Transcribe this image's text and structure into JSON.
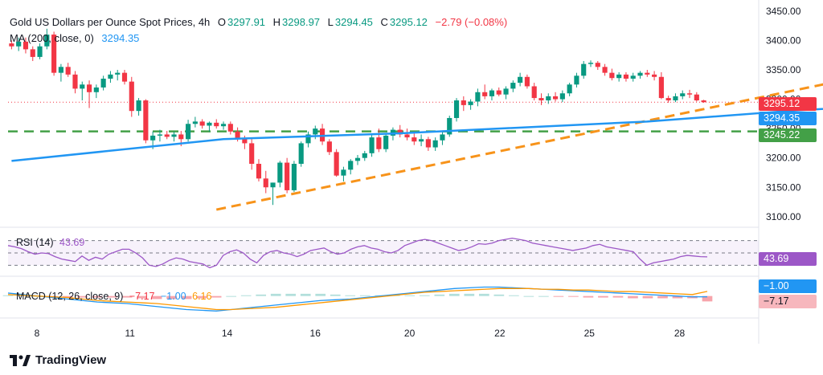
{
  "header": {
    "title": "Gold US Dollars per Ounce Spot Prices, 4h",
    "open_label": "O",
    "open": "3297.91",
    "high_label": "H",
    "high": "3298.97",
    "low_label": "L",
    "low": "3294.45",
    "close_label": "C",
    "close": "3295.12",
    "change": "−2.79 (−0.08%)",
    "ma_label": "MA (200, close, 0)",
    "ma_value": "3294.35"
  },
  "rsi": {
    "label": "RSI (14)",
    "value": "43.69"
  },
  "macd": {
    "label": "MACD (12, 26, close, 9)",
    "hist_value": "−7.17",
    "macd_value": "−1.00",
    "signal_value": "6.16"
  },
  "price_tags": {
    "last": "3295.12",
    "ma": "3294.35",
    "support": "3245.22",
    "rsi": "43.69",
    "macd": "−1.00",
    "hist": "−7.17"
  },
  "footer": {
    "brand": "TradingView"
  },
  "colors": {
    "up": "#089981",
    "down": "#f23645",
    "ma": "#2196f3",
    "trend": "#f7931a",
    "support": "#43a047",
    "rsi": "#9c57c7",
    "macd_line": "#2196f3",
    "signal_line": "#ff9800"
  },
  "chart_data": {
    "type": "candlestick",
    "title": "Gold US Dollars per Ounce Spot Prices, 4h",
    "y_ticks": [
      3100,
      3150,
      3200,
      3250,
      3300,
      3350,
      3400,
      3450
    ],
    "y_tick_labels": [
      "3100.00",
      "3150.00",
      "3200.00",
      "3250.00",
      "3300.00",
      "3350.00",
      "3400.00",
      "3450.00"
    ],
    "x_tick_labels": [
      "8",
      "11",
      "14",
      "16",
      "20",
      "22",
      "25",
      "28"
    ],
    "ylim": [
      3082,
      3458
    ],
    "candles_ohlc": [
      [
        3395,
        3400,
        3385,
        3390
      ],
      [
        3390,
        3405,
        3382,
        3398
      ],
      [
        3398,
        3405,
        3378,
        3385
      ],
      [
        3385,
        3390,
        3365,
        3372
      ],
      [
        3372,
        3395,
        3368,
        3390
      ],
      [
        3390,
        3420,
        3385,
        3410
      ],
      [
        3410,
        3415,
        3340,
        3345
      ],
      [
        3345,
        3360,
        3330,
        3355
      ],
      [
        3355,
        3362,
        3338,
        3342
      ],
      [
        3342,
        3348,
        3310,
        3318
      ],
      [
        3318,
        3330,
        3298,
        3325
      ],
      [
        3325,
        3332,
        3285,
        3312
      ],
      [
        3312,
        3325,
        3302,
        3320
      ],
      [
        3320,
        3340,
        3315,
        3335
      ],
      [
        3335,
        3348,
        3328,
        3342
      ],
      [
        3342,
        3350,
        3332,
        3345
      ],
      [
        3345,
        3350,
        3325,
        3330
      ],
      [
        3330,
        3338,
        3270,
        3280
      ],
      [
        3280,
        3302,
        3272,
        3298
      ],
      [
        3298,
        3300,
        3225,
        3230
      ],
      [
        3230,
        3245,
        3215,
        3238
      ],
      [
        3238,
        3248,
        3228,
        3240
      ],
      [
        3240,
        3246,
        3232,
        3236
      ],
      [
        3236,
        3245,
        3228,
        3240
      ],
      [
        3240,
        3246,
        3220,
        3232
      ],
      [
        3232,
        3265,
        3228,
        3258
      ],
      [
        3258,
        3270,
        3252,
        3262
      ],
      [
        3262,
        3266,
        3250,
        3255
      ],
      [
        3255,
        3262,
        3245,
        3260
      ],
      [
        3260,
        3266,
        3250,
        3254
      ],
      [
        3254,
        3262,
        3248,
        3258
      ],
      [
        3258,
        3262,
        3240,
        3245
      ],
      [
        3245,
        3252,
        3228,
        3232
      ],
      [
        3232,
        3238,
        3215,
        3225
      ],
      [
        3225,
        3232,
        3180,
        3190
      ],
      [
        3190,
        3198,
        3160,
        3165
      ],
      [
        3165,
        3178,
        3140,
        3150
      ],
      [
        3150,
        3158,
        3120,
        3158
      ],
      [
        3158,
        3195,
        3150,
        3192
      ],
      [
        3192,
        3200,
        3140,
        3145
      ],
      [
        3145,
        3195,
        3142,
        3190
      ],
      [
        3190,
        3228,
        3185,
        3225
      ],
      [
        3225,
        3245,
        3218,
        3240
      ],
      [
        3240,
        3255,
        3232,
        3250
      ],
      [
        3250,
        3258,
        3222,
        3228
      ],
      [
        3228,
        3232,
        3205,
        3210
      ],
      [
        3210,
        3215,
        3168,
        3170
      ],
      [
        3170,
        3185,
        3160,
        3180
      ],
      [
        3180,
        3198,
        3172,
        3195
      ],
      [
        3195,
        3205,
        3188,
        3200
      ],
      [
        3200,
        3212,
        3195,
        3208
      ],
      [
        3208,
        3240,
        3202,
        3235
      ],
      [
        3235,
        3250,
        3210,
        3215
      ],
      [
        3215,
        3240,
        3210,
        3238
      ],
      [
        3238,
        3252,
        3230,
        3248
      ],
      [
        3248,
        3256,
        3235,
        3240
      ],
      [
        3240,
        3250,
        3230,
        3235
      ],
      [
        3235,
        3245,
        3222,
        3228
      ],
      [
        3228,
        3240,
        3220,
        3232
      ],
      [
        3232,
        3236,
        3212,
        3218
      ],
      [
        3218,
        3235,
        3212,
        3230
      ],
      [
        3230,
        3245,
        3222,
        3240
      ],
      [
        3240,
        3272,
        3236,
        3268
      ],
      [
        3268,
        3302,
        3262,
        3298
      ],
      [
        3298,
        3305,
        3280,
        3290
      ],
      [
        3290,
        3300,
        3282,
        3296
      ],
      [
        3296,
        3318,
        3288,
        3312
      ],
      [
        3312,
        3325,
        3300,
        3305
      ],
      [
        3305,
        3318,
        3298,
        3315
      ],
      [
        3315,
        3320,
        3305,
        3308
      ],
      [
        3308,
        3322,
        3300,
        3318
      ],
      [
        3318,
        3332,
        3312,
        3328
      ],
      [
        3328,
        3345,
        3322,
        3338
      ],
      [
        3338,
        3342,
        3318,
        3322
      ],
      [
        3322,
        3328,
        3298,
        3302
      ],
      [
        3302,
        3310,
        3290,
        3298
      ],
      [
        3298,
        3310,
        3292,
        3305
      ],
      [
        3305,
        3312,
        3296,
        3300
      ],
      [
        3300,
        3315,
        3295,
        3310
      ],
      [
        3310,
        3328,
        3305,
        3325
      ],
      [
        3325,
        3345,
        3320,
        3340
      ],
      [
        3340,
        3365,
        3335,
        3360
      ],
      [
        3360,
        3366,
        3355,
        3362
      ],
      [
        3362,
        3365,
        3350,
        3355
      ],
      [
        3355,
        3360,
        3340,
        3345
      ],
      [
        3345,
        3352,
        3332,
        3336
      ],
      [
        3336,
        3346,
        3330,
        3342
      ],
      [
        3342,
        3346,
        3330,
        3335
      ],
      [
        3335,
        3345,
        3330,
        3340
      ],
      [
        3340,
        3348,
        3335,
        3345
      ],
      [
        3345,
        3350,
        3338,
        3342
      ],
      [
        3342,
        3348,
        3332,
        3338
      ],
      [
        3338,
        3346,
        3300,
        3302
      ],
      [
        3302,
        3306,
        3294,
        3298
      ],
      [
        3298,
        3310,
        3295,
        3305
      ],
      [
        3305,
        3315,
        3300,
        3310
      ],
      [
        3310,
        3316,
        3302,
        3308
      ],
      [
        3308,
        3312,
        3296,
        3298
      ],
      [
        3298,
        3299,
        3294,
        3295
      ]
    ],
    "ma_200": [
      [
        0,
        3195
      ],
      [
        30,
        3232
      ],
      [
        55,
        3242
      ],
      [
        90,
        3262
      ],
      [
        110,
        3280
      ],
      [
        124,
        3290
      ],
      [
        135,
        3294.35
      ]
    ],
    "trend_line": [
      [
        29,
        3112
      ],
      [
        135,
        3375
      ]
    ],
    "support_level": 3245.22,
    "rsi_values": [
      62,
      60,
      57,
      52,
      48,
      50,
      49,
      44,
      40,
      38,
      36,
      45,
      38,
      43,
      40,
      48,
      52,
      56,
      56,
      50,
      42,
      30,
      28,
      32,
      38,
      42,
      40,
      36,
      34,
      32,
      26,
      30,
      46,
      52,
      55,
      50,
      40,
      34,
      46,
      52,
      54,
      50,
      48,
      44,
      48,
      54,
      56,
      58,
      52,
      48,
      50,
      56,
      60,
      62,
      58,
      56,
      52,
      50,
      54,
      62,
      66,
      70,
      72,
      70,
      66,
      62,
      58,
      54,
      56,
      60,
      65,
      64,
      66,
      70,
      72,
      74,
      72,
      70,
      66,
      64,
      62,
      60,
      58,
      56,
      54,
      56,
      58,
      62,
      64,
      60,
      58,
      56,
      54,
      52,
      40,
      30,
      34,
      36,
      38,
      40,
      44,
      46,
      45,
      44,
      43.69
    ],
    "rsi_range": [
      20,
      80
    ],
    "macd_values": [
      4,
      2,
      0,
      -2,
      -4,
      -6,
      -8,
      -9,
      -10,
      -12,
      -14,
      -16,
      -18,
      -19,
      -20,
      -18,
      -16,
      -14,
      -12,
      -10,
      -8,
      -6,
      -5,
      -4,
      -2,
      0,
      2,
      4,
      6,
      8,
      10,
      11,
      12,
      12,
      11,
      10,
      9,
      8,
      7,
      6,
      5,
      4,
      3,
      2,
      1,
      0,
      -1,
      -1
    ],
    "signal_values": [
      2,
      1,
      0,
      -1,
      -2,
      -4,
      -6,
      -7,
      -8,
      -9,
      -10,
      -12,
      -14,
      -16,
      -18,
      -18,
      -17,
      -16,
      -15,
      -13,
      -11,
      -9,
      -7,
      -5,
      -3,
      -1,
      1,
      3,
      5,
      6,
      7,
      8,
      9,
      10,
      10,
      10,
      9,
      9,
      8,
      8,
      7,
      6,
      6,
      5,
      4,
      3,
      2,
      6.16
    ],
    "histogram_values": [
      1,
      1,
      0,
      -1,
      -2,
      -2,
      -2,
      -2,
      -2,
      -3,
      -4,
      -4,
      -4,
      -3,
      -2,
      0,
      1,
      2,
      3,
      3,
      3,
      3,
      2,
      1,
      1,
      1,
      1,
      1,
      1,
      2,
      3,
      3,
      3,
      2,
      1,
      0,
      0,
      -1,
      -1,
      -2,
      -2,
      -2,
      -3,
      -3,
      -3,
      -3,
      -3,
      -7.17
    ],
    "macd_range": [
      -25,
      20
    ]
  }
}
